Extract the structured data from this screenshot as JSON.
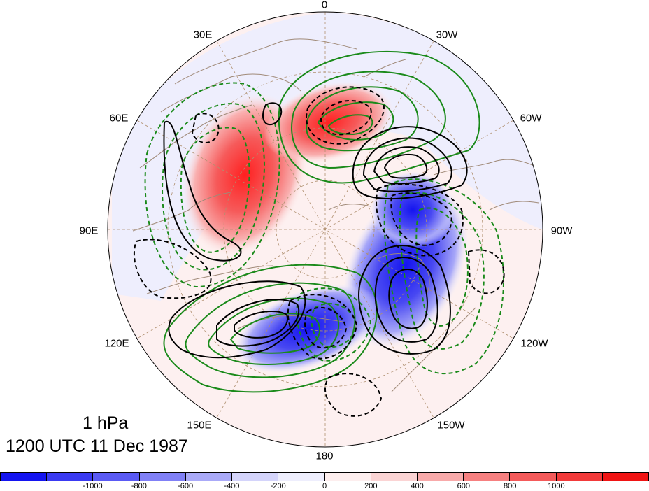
{
  "map": {
    "level_label": "1 hPa",
    "time_label": "1200 UTC 11 Dec 1987",
    "projection": "north polar stereographic",
    "longitude_labels": [
      {
        "id": "lon-0",
        "text": "0"
      },
      {
        "id": "lon-30w",
        "text": "30W"
      },
      {
        "id": "lon-60w",
        "text": "60W"
      },
      {
        "id": "lon-90w",
        "text": "90W"
      },
      {
        "id": "lon-120w",
        "text": "120W"
      },
      {
        "id": "lon-150w",
        "text": "150W"
      },
      {
        "id": "lon-180",
        "text": "180"
      },
      {
        "id": "lon-150e",
        "text": "150E"
      },
      {
        "id": "lon-120e",
        "text": "120E"
      },
      {
        "id": "lon-90e",
        "text": "90E"
      },
      {
        "id": "lon-60e",
        "text": "60E"
      },
      {
        "id": "lon-30e",
        "text": "30E"
      }
    ],
    "shading_colors": {
      "positive": "#ff1a1a",
      "negative": "#1a1aff",
      "ocean_background": "#fdeeee",
      "grid": "#b09070",
      "coast": "#a08a78"
    },
    "contour_colors": {
      "black_set": "#000000",
      "green_set": "#1a8a1a"
    }
  },
  "colorbar": {
    "colors": [
      "#1414f0",
      "#3a3af2",
      "#5a5af4",
      "#8080f6",
      "#aaaaf8",
      "#d4d4fb",
      "#eeeefd",
      "#fdeeee",
      "#fbd4d4",
      "#f8aaaa",
      "#f68080",
      "#f45a5a",
      "#f23a3a",
      "#f01414"
    ],
    "tick_labels": [
      "-1000",
      "-800",
      "-600",
      "-400",
      "-200",
      "0",
      "200",
      "400",
      "600",
      "800",
      "1000"
    ]
  }
}
